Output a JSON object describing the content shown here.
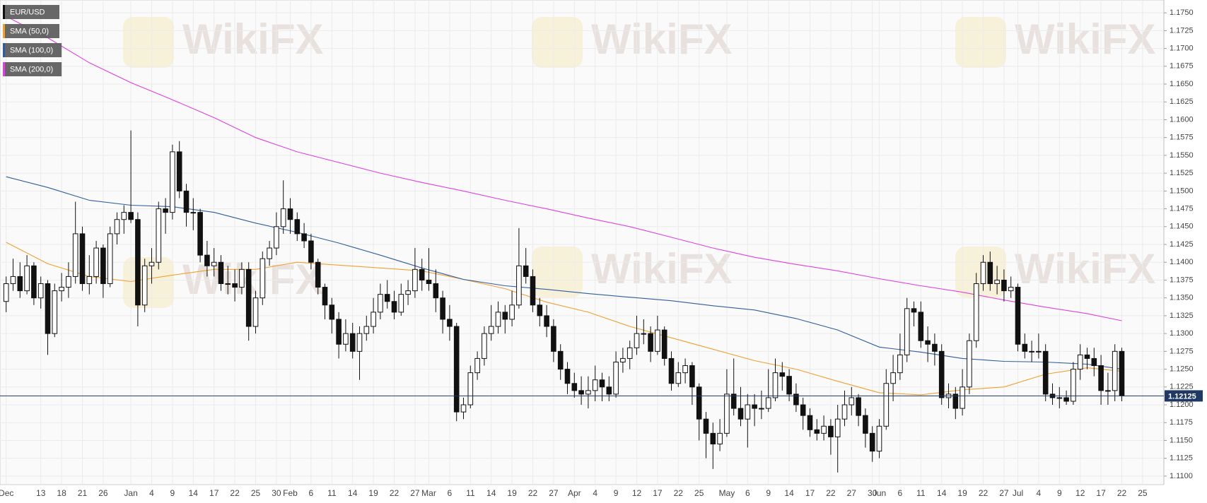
{
  "chart_data": {
    "type": "candlestick",
    "watermark": "WikiFX",
    "name": "EUR/USD",
    "color": "#111111",
    "ylim": [
      1.1088,
      1.1768
    ],
    "yticks": [
      {
        "value": 1.11,
        "label": "1.1100"
      },
      1.1125,
      {
        "value": 1.115,
        "label": "1.1150"
      },
      1.1175,
      {
        "value": 1.12,
        "label": "1.1200"
      },
      1.1225,
      {
        "value": 1.125,
        "label": "1.1250"
      },
      1.1275,
      {
        "value": 1.13,
        "label": "1.1300"
      },
      1.1325,
      {
        "value": 1.135,
        "label": "1.1350"
      },
      1.1375,
      {
        "value": 1.14,
        "label": "1.1400"
      },
      1.1425,
      {
        "value": 1.145,
        "label": "1.1450"
      },
      1.1475,
      {
        "value": 1.15,
        "label": "1.1500"
      },
      1.1525,
      {
        "value": 1.155,
        "label": "1.1550"
      },
      1.1575,
      {
        "value": 1.16,
        "label": "1.1600"
      },
      1.1625,
      {
        "value": 1.165,
        "label": "1.1650"
      },
      1.1675,
      {
        "value": 1.17,
        "label": "1.1700"
      },
      1.1725,
      {
        "value": 1.175,
        "label": "1.1750"
      }
    ],
    "grid": true,
    "last_price": 1.12125,
    "categories": [
      "Dec",
      null,
      null,
      null,
      null,
      "13",
      null,
      null,
      "18",
      null,
      null,
      "21",
      null,
      null,
      "26",
      null,
      null,
      null,
      "Jan",
      null,
      null,
      "4",
      null,
      null,
      "9",
      null,
      null,
      "14",
      null,
      null,
      "17",
      null,
      null,
      "22",
      null,
      null,
      "25",
      null,
      null,
      "30",
      null,
      "Feb",
      null,
      null,
      "6",
      null,
      null,
      "11",
      null,
      null,
      "14",
      null,
      null,
      "19",
      null,
      null,
      "22",
      null,
      null,
      "27",
      null,
      "Mar",
      null,
      null,
      "6",
      null,
      null,
      "11",
      null,
      null,
      "14",
      null,
      null,
      "19",
      null,
      null,
      "22",
      null,
      null,
      "27",
      null,
      null,
      "Apr",
      null,
      null,
      "4",
      null,
      null,
      "9",
      null,
      null,
      "12",
      null,
      null,
      "17",
      null,
      null,
      "22",
      null,
      null,
      "25",
      null,
      null,
      null,
      "May",
      null,
      null,
      "6",
      null,
      null,
      "9",
      null,
      null,
      "14",
      null,
      null,
      "17",
      null,
      null,
      "22",
      null,
      null,
      "27",
      null,
      null,
      "30",
      "Jun",
      null,
      null,
      "6",
      null,
      null,
      "11",
      null,
      null,
      "14",
      null,
      null,
      "19",
      null,
      null,
      "22",
      null,
      null,
      "27",
      null,
      "Jul",
      null,
      null,
      "4",
      null,
      null,
      "9",
      null,
      null,
      "12",
      null,
      null,
      "17",
      null,
      null,
      "22",
      null,
      null,
      "25"
    ],
    "ohlc": [
      [
        1.1345,
        1.138,
        1.133,
        1.137
      ],
      [
        1.137,
        1.1405,
        1.136,
        1.138
      ],
      [
        1.138,
        1.14,
        1.135,
        1.136
      ],
      [
        1.136,
        1.141,
        1.1355,
        1.1395
      ],
      [
        1.1395,
        1.14,
        1.134,
        1.135
      ],
      [
        1.135,
        1.138,
        1.1335,
        1.137
      ],
      [
        1.137,
        1.1375,
        1.127,
        1.13
      ],
      [
        1.13,
        1.137,
        1.1295,
        1.136
      ],
      [
        1.136,
        1.1385,
        1.1345,
        1.1365
      ],
      [
        1.1365,
        1.14,
        1.135,
        1.138
      ],
      [
        1.138,
        1.1485,
        1.137,
        1.144
      ],
      [
        1.144,
        1.145,
        1.136,
        1.137
      ],
      [
        1.137,
        1.141,
        1.1355,
        1.138
      ],
      [
        1.138,
        1.143,
        1.137,
        1.142
      ],
      [
        1.142,
        1.1425,
        1.135,
        1.137
      ],
      [
        1.137,
        1.145,
        1.1365,
        1.144
      ],
      [
        1.144,
        1.147,
        1.1425,
        1.146
      ],
      [
        1.146,
        1.148,
        1.144,
        1.147
      ],
      [
        1.147,
        1.1585,
        1.1455,
        1.146
      ],
      [
        1.146,
        1.147,
        1.131,
        1.134
      ],
      [
        1.134,
        1.1405,
        1.133,
        1.1395
      ],
      [
        1.1395,
        1.142,
        1.137,
        1.14
      ],
      [
        1.14,
        1.1485,
        1.139,
        1.1475
      ],
      [
        1.1475,
        1.149,
        1.144,
        1.147
      ],
      [
        1.147,
        1.1565,
        1.146,
        1.1555
      ],
      [
        1.1555,
        1.157,
        1.149,
        1.15
      ],
      [
        1.15,
        1.151,
        1.145,
        1.147
      ],
      [
        1.147,
        1.149,
        1.1445,
        1.147
      ],
      [
        1.147,
        1.1475,
        1.14,
        1.141
      ],
      [
        1.141,
        1.143,
        1.138,
        1.1395
      ],
      [
        1.1395,
        1.142,
        1.138,
        1.14
      ],
      [
        1.14,
        1.141,
        1.136,
        1.137
      ],
      [
        1.137,
        1.1395,
        1.1355,
        1.137
      ],
      [
        1.137,
        1.139,
        1.1345,
        1.1365
      ],
      [
        1.1365,
        1.14,
        1.1355,
        1.139
      ],
      [
        1.139,
        1.14,
        1.129,
        1.131
      ],
      [
        1.131,
        1.136,
        1.13,
        1.135
      ],
      [
        1.135,
        1.1415,
        1.134,
        1.1405
      ],
      [
        1.1405,
        1.143,
        1.1395,
        1.142
      ],
      [
        1.142,
        1.147,
        1.141,
        1.145
      ],
      [
        1.145,
        1.1515,
        1.144,
        1.1475
      ],
      [
        1.1475,
        1.149,
        1.144,
        1.146
      ],
      [
        1.146,
        1.147,
        1.143,
        1.144
      ],
      [
        1.144,
        1.1455,
        1.142,
        1.143
      ],
      [
        1.143,
        1.144,
        1.139,
        1.14
      ],
      [
        1.14,
        1.1405,
        1.1355,
        1.1365
      ],
      [
        1.1365,
        1.137,
        1.132,
        1.134
      ],
      [
        1.134,
        1.135,
        1.13,
        1.132
      ],
      [
        1.132,
        1.133,
        1.1265,
        1.1285
      ],
      [
        1.1285,
        1.132,
        1.1275,
        1.13
      ],
      [
        1.13,
        1.1315,
        1.1265,
        1.1275
      ],
      [
        1.1275,
        1.131,
        1.1235,
        1.13
      ],
      [
        1.13,
        1.1325,
        1.129,
        1.131
      ],
      [
        1.131,
        1.135,
        1.13,
        1.133
      ],
      [
        1.133,
        1.137,
        1.132,
        1.1355
      ],
      [
        1.1355,
        1.1375,
        1.1335,
        1.1345
      ],
      [
        1.1345,
        1.136,
        1.132,
        1.133
      ],
      [
        1.133,
        1.137,
        1.1325,
        1.1355
      ],
      [
        1.1355,
        1.1375,
        1.134,
        1.136
      ],
      [
        1.136,
        1.142,
        1.135,
        1.139
      ],
      [
        1.139,
        1.1405,
        1.136,
        1.1375
      ],
      [
        1.1375,
        1.142,
        1.136,
        1.137
      ],
      [
        1.137,
        1.139,
        1.133,
        1.135
      ],
      [
        1.135,
        1.136,
        1.13,
        1.132
      ],
      [
        1.132,
        1.134,
        1.129,
        1.131
      ],
      [
        1.131,
        1.1315,
        1.1177,
        1.119
      ],
      [
        1.119,
        1.121,
        1.118,
        1.12
      ],
      [
        1.12,
        1.1255,
        1.1195,
        1.1245
      ],
      [
        1.1245,
        1.1275,
        1.1235,
        1.1265
      ],
      [
        1.1265,
        1.131,
        1.1255,
        1.13
      ],
      [
        1.13,
        1.134,
        1.129,
        1.131
      ],
      [
        1.131,
        1.1345,
        1.13,
        1.133
      ],
      [
        1.133,
        1.134,
        1.13,
        1.132
      ],
      [
        1.132,
        1.136,
        1.131,
        1.134
      ],
      [
        1.134,
        1.1448,
        1.1335,
        1.1395
      ],
      [
        1.1395,
        1.142,
        1.137,
        1.138
      ],
      [
        1.138,
        1.139,
        1.133,
        1.134
      ],
      [
        1.134,
        1.135,
        1.131,
        1.1325
      ],
      [
        1.1325,
        1.134,
        1.1295,
        1.131
      ],
      [
        1.131,
        1.132,
        1.126,
        1.1275
      ],
      [
        1.1275,
        1.1285,
        1.1235,
        1.125
      ],
      [
        1.125,
        1.126,
        1.1215,
        1.123
      ],
      [
        1.123,
        1.1245,
        1.121,
        1.122
      ],
      [
        1.122,
        1.124,
        1.12,
        1.1215
      ],
      [
        1.1215,
        1.124,
        1.1195,
        1.122
      ],
      [
        1.122,
        1.1255,
        1.1205,
        1.1235
      ],
      [
        1.1235,
        1.1245,
        1.1205,
        1.1225
      ],
      [
        1.1225,
        1.124,
        1.1205,
        1.1215
      ],
      [
        1.1215,
        1.1275,
        1.121,
        1.126
      ],
      [
        1.126,
        1.128,
        1.1245,
        1.1265
      ],
      [
        1.1265,
        1.129,
        1.125,
        1.128
      ],
      [
        1.128,
        1.1325,
        1.127,
        1.13
      ],
      [
        1.13,
        1.132,
        1.1285,
        1.13
      ],
      [
        1.13,
        1.131,
        1.126,
        1.1275
      ],
      [
        1.1275,
        1.1325,
        1.127,
        1.1305
      ],
      [
        1.1305,
        1.131,
        1.1255,
        1.1265
      ],
      [
        1.1265,
        1.1275,
        1.122,
        1.123
      ],
      [
        1.123,
        1.126,
        1.1225,
        1.1245
      ],
      [
        1.1245,
        1.1265,
        1.123,
        1.1255
      ],
      [
        1.1255,
        1.126,
        1.12,
        1.1225
      ],
      [
        1.1225,
        1.123,
        1.115,
        1.118
      ],
      [
        1.118,
        1.119,
        1.1125,
        1.116
      ],
      [
        1.116,
        1.1175,
        1.111,
        1.1145
      ],
      [
        1.1145,
        1.118,
        1.1135,
        1.116
      ],
      [
        1.116,
        1.125,
        1.1155,
        1.1215
      ],
      [
        1.1215,
        1.1265,
        1.1185,
        1.1195
      ],
      [
        1.1195,
        1.1225,
        1.117,
        1.118
      ],
      [
        1.118,
        1.1215,
        1.114,
        1.12
      ],
      [
        1.12,
        1.1215,
        1.117,
        1.1195
      ],
      [
        1.1195,
        1.122,
        1.118,
        1.1195
      ],
      [
        1.1195,
        1.125,
        1.119,
        1.121
      ],
      [
        1.121,
        1.1265,
        1.1205,
        1.1245
      ],
      [
        1.1245,
        1.126,
        1.122,
        1.124
      ],
      [
        1.124,
        1.125,
        1.1205,
        1.1215
      ],
      [
        1.1215,
        1.123,
        1.119,
        1.12
      ],
      [
        1.12,
        1.121,
        1.1165,
        1.1185
      ],
      [
        1.1185,
        1.1195,
        1.1155,
        1.1165
      ],
      [
        1.1165,
        1.118,
        1.115,
        1.116
      ],
      [
        1.116,
        1.1185,
        1.115,
        1.117
      ],
      [
        1.117,
        1.118,
        1.113,
        1.1155
      ],
      [
        1.1155,
        1.12,
        1.1105,
        1.118
      ],
      [
        1.118,
        1.122,
        1.117,
        1.12
      ],
      [
        1.12,
        1.1225,
        1.1185,
        1.121
      ],
      [
        1.121,
        1.1215,
        1.117,
        1.1185
      ],
      [
        1.1185,
        1.1195,
        1.114,
        1.116
      ],
      [
        1.116,
        1.117,
        1.112,
        1.1135
      ],
      [
        1.1135,
        1.118,
        1.1125,
        1.117
      ],
      [
        1.117,
        1.125,
        1.1165,
        1.123
      ],
      [
        1.123,
        1.127,
        1.1205,
        1.1245
      ],
      [
        1.1245,
        1.13,
        1.1235,
        1.127
      ],
      [
        1.127,
        1.135,
        1.126,
        1.1335
      ],
      [
        1.1335,
        1.1345,
        1.131,
        1.133
      ],
      [
        1.133,
        1.1345,
        1.128,
        1.129
      ],
      [
        1.129,
        1.131,
        1.126,
        1.1285
      ],
      [
        1.1285,
        1.13,
        1.1255,
        1.1275
      ],
      [
        1.1275,
        1.1285,
        1.12,
        1.121
      ],
      [
        1.121,
        1.123,
        1.1195,
        1.1215
      ],
      [
        1.1215,
        1.1225,
        1.118,
        1.1195
      ],
      [
        1.1195,
        1.125,
        1.1185,
        1.1225
      ],
      [
        1.1225,
        1.13,
        1.1215,
        1.129
      ],
      [
        1.129,
        1.1385,
        1.128,
        1.137
      ],
      [
        1.137,
        1.141,
        1.136,
        1.14
      ],
      [
        1.14,
        1.1415,
        1.136,
        1.137
      ],
      [
        1.137,
        1.1395,
        1.1355,
        1.1375
      ],
      [
        1.1375,
        1.139,
        1.1345,
        1.136
      ],
      [
        1.136,
        1.138,
        1.135,
        1.1365
      ],
      [
        1.1365,
        1.137,
        1.1275,
        1.1285
      ],
      [
        1.1285,
        1.13,
        1.1265,
        1.1275
      ],
      [
        1.1275,
        1.129,
        1.126,
        1.1275
      ],
      [
        1.1275,
        1.13,
        1.1265,
        1.1275
      ],
      [
        1.1275,
        1.1285,
        1.1205,
        1.1215
      ],
      [
        1.1215,
        1.123,
        1.12,
        1.121
      ],
      [
        1.121,
        1.1225,
        1.1195,
        1.121
      ],
      [
        1.121,
        1.122,
        1.12,
        1.1205
      ],
      [
        1.1205,
        1.126,
        1.12,
        1.125
      ],
      [
        1.125,
        1.1285,
        1.1235,
        1.127
      ],
      [
        1.127,
        1.128,
        1.125,
        1.1265
      ],
      [
        1.1265,
        1.128,
        1.124,
        1.1255
      ],
      [
        1.1255,
        1.127,
        1.12,
        1.122
      ],
      [
        1.122,
        1.1245,
        1.12,
        1.122
      ],
      [
        1.122,
        1.1285,
        1.1205,
        1.1275
      ],
      [
        1.1275,
        1.128,
        1.1205,
        1.12125
      ],
      null,
      null,
      null
    ],
    "series": [
      {
        "name": "SMA (50,0)",
        "color": "#f0a030",
        "x": [
          0,
          6,
          12,
          18,
          24,
          30,
          36,
          42,
          48,
          54,
          60,
          66,
          72,
          78,
          84,
          90,
          96,
          102,
          108,
          114,
          120,
          126,
          132,
          138,
          144,
          150,
          156,
          161
        ],
        "values": [
          1.1428,
          1.1398,
          1.138,
          1.1373,
          1.1382,
          1.139,
          1.139,
          1.14,
          1.1396,
          1.1392,
          1.1388,
          1.1376,
          1.1363,
          1.1344,
          1.133,
          1.131,
          1.1294,
          1.1278,
          1.1262,
          1.125,
          1.1233,
          1.1217,
          1.1214,
          1.1221,
          1.1225,
          1.1243,
          1.1252,
          1.1247
        ]
      },
      {
        "name": "SMA (100,0)",
        "color": "#2f5d9e",
        "x": [
          0,
          6,
          12,
          18,
          24,
          30,
          36,
          42,
          48,
          54,
          60,
          66,
          72,
          78,
          84,
          90,
          96,
          102,
          108,
          114,
          120,
          126,
          132,
          138,
          144,
          150,
          156,
          161
        ],
        "values": [
          1.152,
          1.1505,
          1.1487,
          1.148,
          1.1478,
          1.147,
          1.1455,
          1.1442,
          1.1427,
          1.141,
          1.1392,
          1.1376,
          1.1367,
          1.1362,
          1.1356,
          1.1351,
          1.1346,
          1.1339,
          1.1333,
          1.1321,
          1.1305,
          1.1281,
          1.1274,
          1.1265,
          1.1261,
          1.126,
          1.1257,
          1.125
        ]
      },
      {
        "name": "SMA (200,0)",
        "color": "#e040e0",
        "x": [
          0,
          6,
          12,
          18,
          24,
          30,
          36,
          42,
          48,
          54,
          60,
          66,
          72,
          78,
          84,
          90,
          96,
          102,
          108,
          114,
          120,
          126,
          132,
          138,
          144,
          150,
          156,
          161
        ],
        "values": [
          1.1745,
          1.1715,
          1.168,
          1.1652,
          1.1628,
          1.1603,
          1.1575,
          1.1555,
          1.154,
          1.1525,
          1.1512,
          1.15,
          1.1487,
          1.1475,
          1.1462,
          1.145,
          1.1435,
          1.142,
          1.1407,
          1.1397,
          1.1388,
          1.1377,
          1.1367,
          1.1358,
          1.1347,
          1.1337,
          1.1328,
          1.1318
        ]
      }
    ]
  }
}
